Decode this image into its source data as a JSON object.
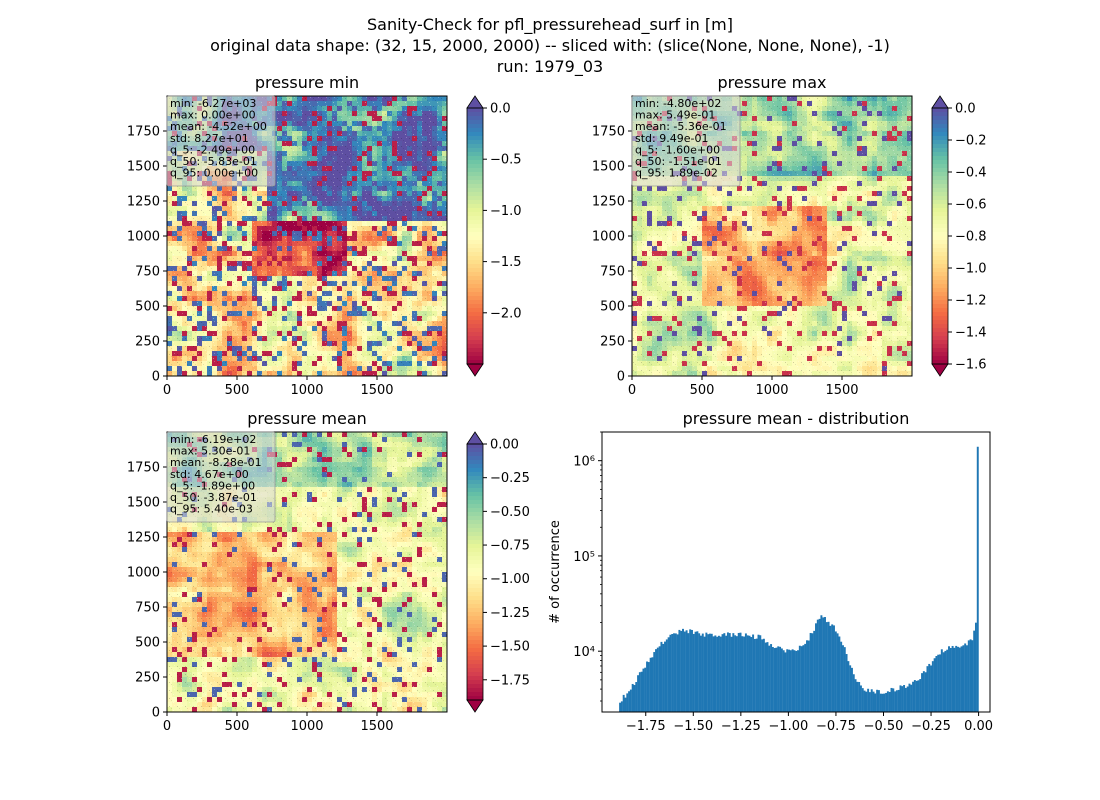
{
  "figure": {
    "title_lines": [
      "Sanity-Check for pfl_pressurehead_surf in [m]",
      "original data shape: (32, 15, 2000, 2000) -- sliced with: (slice(None, None, None), -1)",
      "run: 1979_03"
    ]
  },
  "colors": {
    "spectral": [
      "#9e0142",
      "#d53e4f",
      "#f46d43",
      "#fdae61",
      "#fee08b",
      "#ffffbf",
      "#e6f598",
      "#abdda4",
      "#66c2a5",
      "#3288bd",
      "#5e4fa2"
    ],
    "hist_bar": "#1f77b4"
  },
  "chart_data": [
    {
      "type": "heatmap",
      "title": "pressure min",
      "xlim": [
        0,
        2000
      ],
      "ylim": [
        0,
        2000
      ],
      "xticks": [
        0,
        500,
        1000,
        1500
      ],
      "yticks": [
        0,
        250,
        500,
        750,
        1000,
        1250,
        1500,
        1750
      ],
      "colorbar": {
        "vmin": -2.5,
        "vmax": 0.0,
        "extend": "both",
        "ticks": [
          "0.0",
          "−0.5",
          "−1.0",
          "−1.5",
          "−2.0"
        ],
        "tick_values": [
          0.0,
          -0.5,
          -1.0,
          -1.5,
          -2.0
        ]
      },
      "stats": [
        "min: -6.27e+03",
        "max: 0.00e+00",
        "mean: -4.52e+00",
        "std: 8.27e+01",
        "q_5: -2.49e+00",
        "q_50: -5.83e-01",
        "q_95: 0.00e+00"
      ]
    },
    {
      "type": "heatmap",
      "title": "pressure max",
      "xlim": [
        0,
        2000
      ],
      "ylim": [
        0,
        2000
      ],
      "xticks": [
        0,
        500,
        1000,
        1500
      ],
      "yticks": [
        0,
        250,
        500,
        750,
        1000,
        1250,
        1500,
        1750
      ],
      "colorbar": {
        "vmin": -1.6,
        "vmax": 0.0,
        "extend": "both",
        "ticks": [
          "0.0",
          "−0.2",
          "−0.4",
          "−0.6",
          "−0.8",
          "−1.0",
          "−1.2",
          "−1.4",
          "−1.6"
        ],
        "tick_values": [
          0.0,
          -0.2,
          -0.4,
          -0.6,
          -0.8,
          -1.0,
          -1.2,
          -1.4,
          -1.6
        ]
      },
      "stats": [
        "min: -4.80e+02",
        "max: 5.49e-01",
        "mean: -5.36e-01",
        "std: 9.49e-01",
        "q_5: -1.60e+00",
        "q_50: -1.51e-01",
        "q_95: 1.89e-02"
      ]
    },
    {
      "type": "heatmap",
      "title": "pressure mean",
      "xlim": [
        0,
        2000
      ],
      "ylim": [
        0,
        2000
      ],
      "xticks": [
        0,
        500,
        1000,
        1500
      ],
      "yticks": [
        0,
        250,
        500,
        750,
        1000,
        1250,
        1500,
        1750
      ],
      "colorbar": {
        "vmin": -1.9,
        "vmax": 0.0,
        "extend": "both",
        "ticks": [
          "0.00",
          "−0.25",
          "−0.50",
          "−0.75",
          "−1.00",
          "−1.25",
          "−1.50",
          "−1.75"
        ],
        "tick_values": [
          0.0,
          -0.25,
          -0.5,
          -0.75,
          -1.0,
          -1.25,
          -1.5,
          -1.75
        ]
      },
      "stats": [
        "min: -6.19e+02",
        "max: 5.30e-01",
        "mean: -8.28e-01",
        "std: 4.67e+00",
        "q_5: -1.89e+00",
        "q_50: -3.87e-01",
        "q_95: 5.40e-03"
      ]
    },
    {
      "type": "bar",
      "subtype": "histogram",
      "title": "pressure mean - distribution",
      "ylabel": "# of occurrence",
      "yscale": "log",
      "xlim": [
        -1.98,
        0.06
      ],
      "ylim": [
        2300,
        2000000
      ],
      "xticks": [
        "−1.75",
        "−1.50",
        "−1.25",
        "−1.00",
        "−0.75",
        "−0.50",
        "−0.25",
        "0.00"
      ],
      "xtick_values": [
        -1.75,
        -1.5,
        -1.25,
        -1.0,
        -0.75,
        -0.5,
        -0.25,
        0.0
      ],
      "yticks": [
        "10⁴",
        "10⁵",
        "10⁶"
      ],
      "ytick_values": [
        10000,
        100000,
        1000000
      ],
      "bins": [
        -1.89,
        0.0
      ],
      "profile": [
        [
          -1.89,
          2900
        ],
        [
          -1.86,
          3400
        ],
        [
          -1.82,
          4300
        ],
        [
          -1.78,
          5800
        ],
        [
          -1.74,
          7800
        ],
        [
          -1.7,
          10000
        ],
        [
          -1.66,
          12500
        ],
        [
          -1.62,
          14500
        ],
        [
          -1.58,
          16000
        ],
        [
          -1.54,
          16500
        ],
        [
          -1.5,
          16000
        ],
        [
          -1.45,
          15000
        ],
        [
          -1.4,
          14500
        ],
        [
          -1.35,
          15000
        ],
        [
          -1.3,
          14800
        ],
        [
          -1.25,
          15000
        ],
        [
          -1.2,
          14500
        ],
        [
          -1.15,
          14000
        ],
        [
          -1.1,
          12000
        ],
        [
          -1.05,
          11000
        ],
        [
          -1.0,
          10000
        ],
        [
          -0.95,
          10500
        ],
        [
          -0.9,
          13000
        ],
        [
          -0.86,
          18000
        ],
        [
          -0.83,
          24000
        ],
        [
          -0.8,
          21000
        ],
        [
          -0.76,
          18000
        ],
        [
          -0.72,
          13000
        ],
        [
          -0.68,
          7500
        ],
        [
          -0.64,
          4800
        ],
        [
          -0.6,
          4000
        ],
        [
          -0.55,
          3800
        ],
        [
          -0.5,
          3800
        ],
        [
          -0.45,
          3900
        ],
        [
          -0.4,
          4200
        ],
        [
          -0.35,
          4600
        ],
        [
          -0.3,
          5500
        ],
        [
          -0.25,
          7500
        ],
        [
          -0.2,
          10000
        ],
        [
          -0.15,
          11000
        ],
        [
          -0.1,
          11500
        ],
        [
          -0.06,
          12000
        ],
        [
          -0.03,
          13500
        ],
        [
          -0.015,
          20000
        ],
        [
          -0.008,
          27000
        ],
        [
          -0.002,
          1400000
        ],
        [
          0.0,
          1400000
        ]
      ]
    }
  ]
}
